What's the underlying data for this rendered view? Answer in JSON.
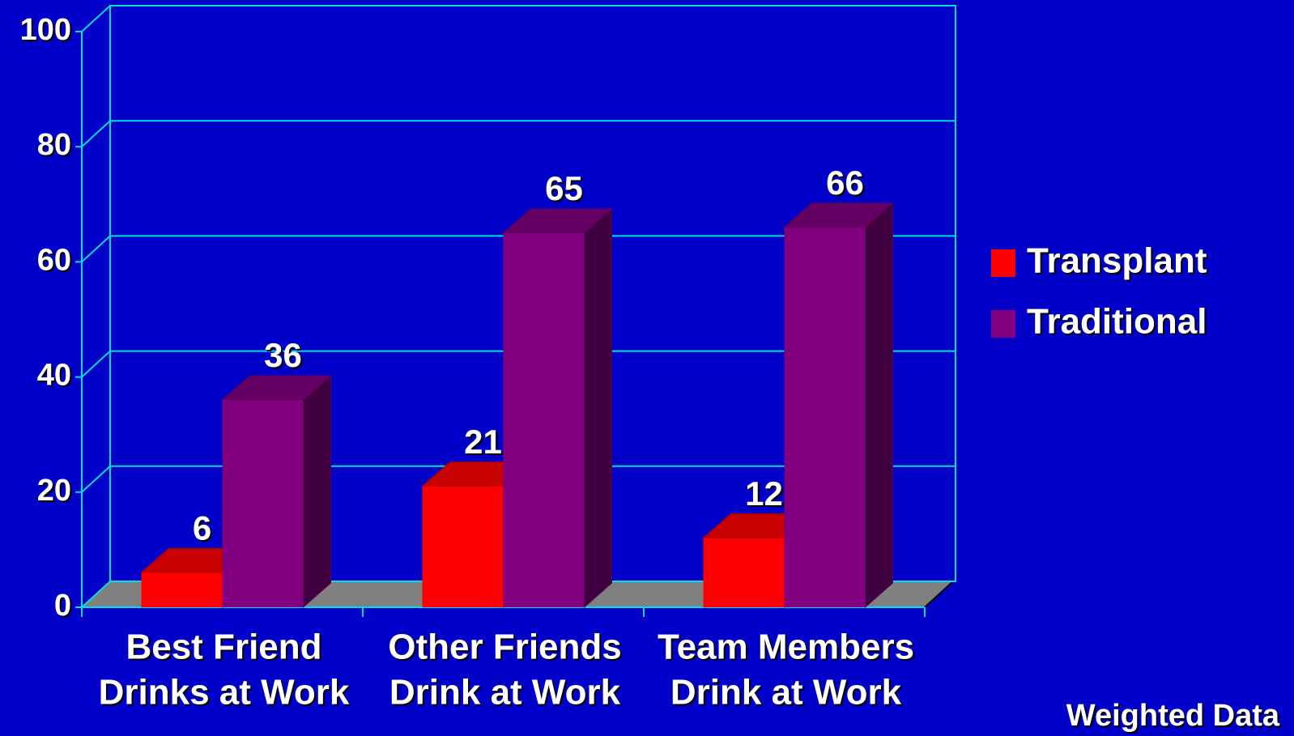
{
  "chart_data": {
    "type": "bar3d",
    "categories": [
      [
        "Best Friend",
        "Drinks at Work"
      ],
      [
        "Other Friends",
        "Drink at Work"
      ],
      [
        "Team Members",
        "Drink at Work"
      ]
    ],
    "series": [
      {
        "name": "Transplant",
        "color": "#ff0000",
        "values": [
          6,
          21,
          12
        ]
      },
      {
        "name": "Traditional",
        "color": "#800080",
        "values": [
          36,
          65,
          66
        ]
      }
    ],
    "ylim": [
      0,
      100
    ],
    "yticks": [
      0,
      20,
      40,
      60,
      80,
      100
    ],
    "grid": true,
    "legend": "right",
    "annotation": "Weighted Data"
  }
}
